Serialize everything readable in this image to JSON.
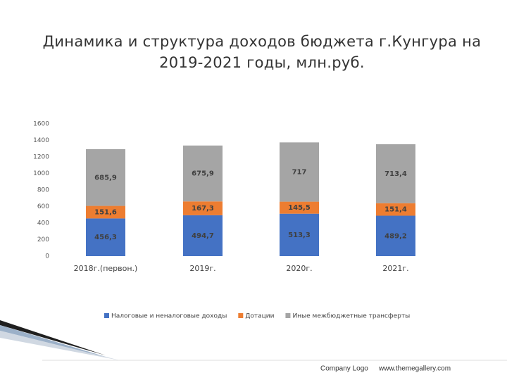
{
  "chart_data": {
    "type": "stacked_bar",
    "title": "Динамика и структура доходов бюджета г.Кунгура на 2019-2021 годы, млн.руб.",
    "categories": [
      "2018г.(первон.)",
      "2019г.",
      "2020г.",
      "2021г."
    ],
    "series": [
      {
        "name": "Налоговые и неналоговые доходы",
        "color": "#4472c4",
        "values": [
          456.3,
          494.7,
          513.3,
          489.2
        ],
        "value_labels": [
          "456,3",
          "494,7",
          "513,3",
          "489,2"
        ]
      },
      {
        "name": "Дотации",
        "color": "#ed7d31",
        "values": [
          151.6,
          167.3,
          145.5,
          151.4
        ],
        "value_labels": [
          "151,6",
          "167,3",
          "145,5",
          "151,4"
        ]
      },
      {
        "name": "Иные межбюджетные трансферты",
        "color": "#a5a5a5",
        "values": [
          685.9,
          675.9,
          717,
          713.4
        ],
        "value_labels": [
          "685,9",
          "675,9",
          "717",
          "713,4"
        ]
      }
    ],
    "ylim": [
      0,
      1600
    ],
    "yticks": [
      0,
      200,
      400,
      600,
      800,
      1000,
      1200,
      1400,
      1600
    ],
    "grid": false,
    "legend": "bottom"
  },
  "footer": {
    "logo": "Company Logo",
    "url": "www.themegallery.com"
  }
}
